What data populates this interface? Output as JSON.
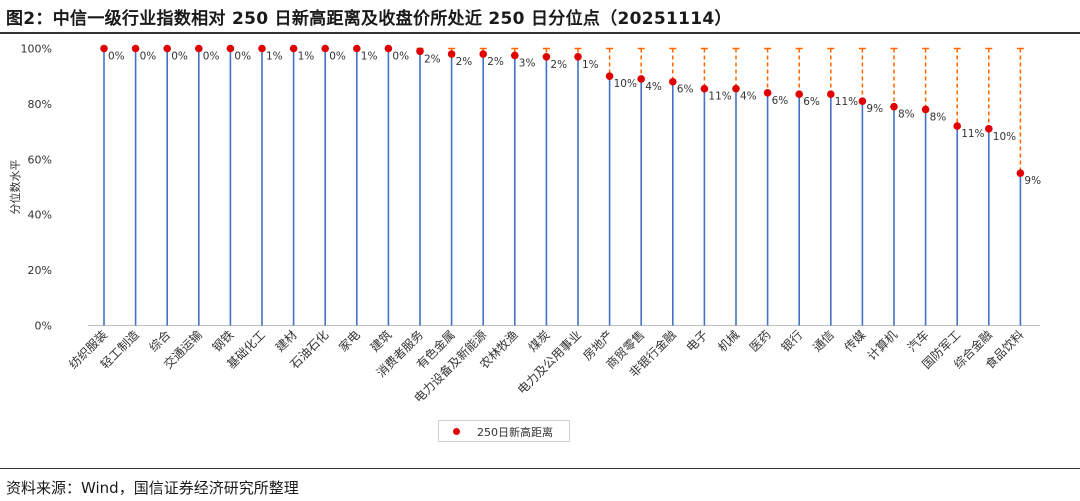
{
  "header": {
    "title": "图2：中信一级行业指数相对 250 日新高距离及收盘价所处近 250 日分位点（20251114）"
  },
  "footer": {
    "source": "资料来源：Wind，国信证券经济研究所整理"
  },
  "colors": {
    "stem": "#4472c4",
    "dot": "#e00000",
    "dash": "#ff6600",
    "axis": "#bfbfbf",
    "text": "#333333"
  },
  "chart_data": {
    "type": "lollipop",
    "title": "",
    "ylabel": "分位数水平",
    "ylim": [
      0,
      100
    ],
    "yticks": [
      "0%",
      "20%",
      "40%",
      "60%",
      "80%",
      "100%"
    ],
    "legend": {
      "position": "bottom",
      "entries": [
        "250日新高距离"
      ]
    },
    "grid": false,
    "categories": [
      "纺织服装",
      "轻工制造",
      "综合",
      "交通运输",
      "钢铁",
      "基础化工",
      "建材",
      "石油石化",
      "家电",
      "建筑",
      "消费者服务",
      "有色金属",
      "电力设备及新能源",
      "农林牧渔",
      "煤炭",
      "电力及公用事业",
      "房地产",
      "商贸零售",
      "非银行金融",
      "电子",
      "机械",
      "医药",
      "银行",
      "通信",
      "传媒",
      "计算机",
      "汽车",
      "国防军工",
      "综合金融",
      "食品饮料"
    ],
    "series": [
      {
        "name": "分位点",
        "values": [
          100,
          100,
          100,
          100,
          100,
          100,
          100,
          100,
          100,
          100,
          99,
          98,
          98,
          97.5,
          97,
          97,
          90,
          89,
          88,
          85.5,
          85.5,
          84,
          83.5,
          83.5,
          81,
          79,
          78,
          72,
          71,
          55
        ]
      },
      {
        "name": "250日新高距离",
        "values": [
          "0%",
          "0%",
          "0%",
          "0%",
          "0%",
          "1%",
          "1%",
          "0%",
          "1%",
          "0%",
          "2%",
          "2%",
          "2%",
          "3%",
          "2%",
          "1%",
          "10%",
          "4%",
          "6%",
          "11%",
          "4%",
          "6%",
          "6%",
          "11%",
          "9%",
          "8%",
          "8%",
          "11%",
          "10%",
          "9%"
        ]
      }
    ]
  }
}
